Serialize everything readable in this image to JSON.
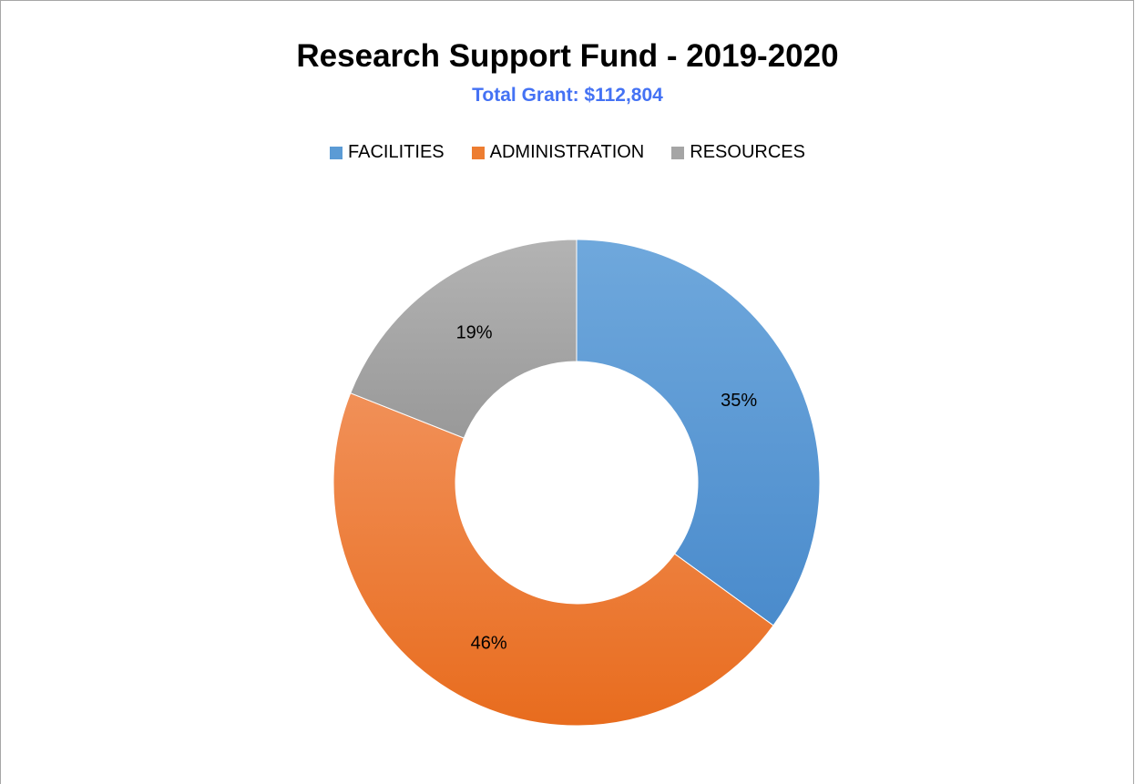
{
  "chart_data": {
    "type": "pie",
    "variant": "doughnut",
    "title": "Research Support Fund - 2019-2020",
    "subtitle": "Total Grant: $112,804",
    "legend_position": "top",
    "slices": [
      {
        "name": "FACILITIES",
        "value": 35,
        "label": "35%",
        "color": "#5b9bd5"
      },
      {
        "name": "ADMINISTRATION",
        "value": 46,
        "label": "46%",
        "color": "#ed7d31"
      },
      {
        "name": "RESOURCES",
        "value": 19,
        "label": "19%",
        "color": "#a5a5a5"
      }
    ]
  },
  "colors": {
    "subtitle": "#4472f4",
    "border": "#a6a6a6"
  }
}
